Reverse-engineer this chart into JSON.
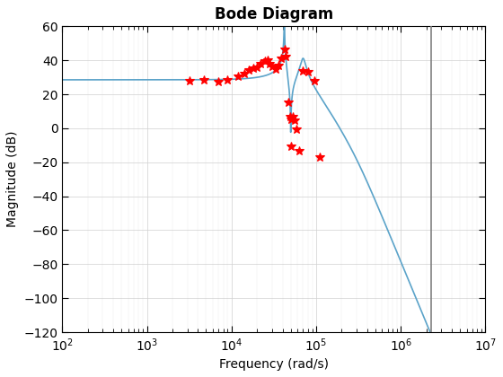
{
  "title": "Bode Diagram",
  "xlabel": "Frequency (rad/s)",
  "ylabel": "Magnitude (dB)",
  "xlim": [
    100,
    10000000.0
  ],
  "ylim": [
    -120,
    60
  ],
  "yticks": [
    -120,
    -100,
    -80,
    -60,
    -40,
    -20,
    0,
    20,
    40,
    60
  ],
  "line_color": "#5ba3c9",
  "marker_color": "#ff0000",
  "vline_x": 2300000.0,
  "vline_color": "#808080",
  "dc_gain_db": 28.5,
  "red_stars": [
    [
      3200,
      28.0
    ],
    [
      4700,
      28.5
    ],
    [
      7000,
      27.5
    ],
    [
      9000,
      28.5
    ],
    [
      12000,
      30.5
    ],
    [
      14000,
      32.0
    ],
    [
      16000,
      34.5
    ],
    [
      18000,
      35.5
    ],
    [
      20000,
      36.0
    ],
    [
      22000,
      38.0
    ],
    [
      25000,
      39.5
    ],
    [
      27000,
      40.0
    ],
    [
      28000,
      38.0
    ],
    [
      30000,
      36.5
    ],
    [
      33000,
      35.0
    ],
    [
      36000,
      37.0
    ],
    [
      39000,
      41.0
    ],
    [
      42000,
      46.5
    ],
    [
      44000,
      42.0
    ],
    [
      47000,
      15.5
    ],
    [
      49000,
      7.0
    ],
    [
      50500,
      5.0
    ],
    [
      51000,
      -10.5
    ],
    [
      52500,
      7.0
    ],
    [
      55000,
      4.5
    ],
    [
      58000,
      -0.5
    ],
    [
      63000,
      -13.5
    ],
    [
      70000,
      33.5
    ],
    [
      80000,
      33.0
    ],
    [
      95000,
      28.0
    ],
    [
      110000,
      -17.0
    ]
  ]
}
